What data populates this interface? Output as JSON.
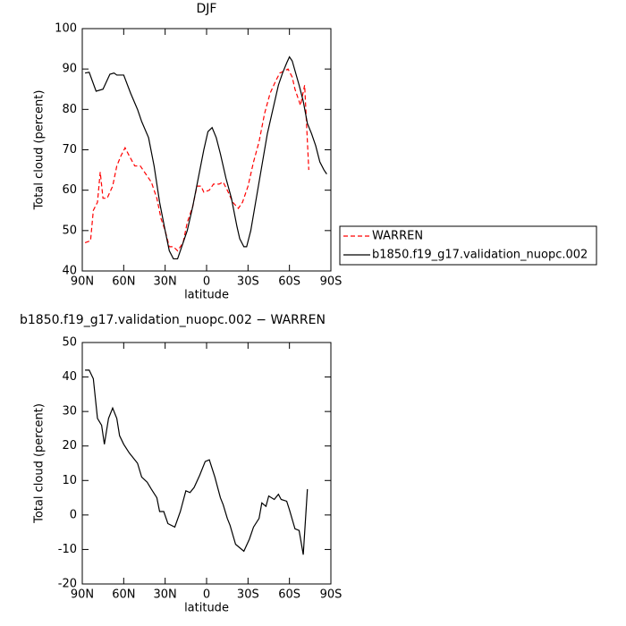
{
  "chart_data": [
    {
      "type": "line",
      "title": "DJF",
      "xlabel": "latitude",
      "ylabel": "Total cloud (percent)",
      "xlim": [
        90,
        -90
      ],
      "ylim": [
        40,
        100
      ],
      "xticks": [
        {
          "value": 90,
          "label": "90N"
        },
        {
          "value": 60,
          "label": "60N"
        },
        {
          "value": 30,
          "label": "30N"
        },
        0,
        {
          "value": -30,
          "label": "30S"
        },
        {
          "value": -60,
          "label": "60S"
        },
        {
          "value": -90,
          "label": "90S"
        }
      ],
      "yticks": [
        40,
        50,
        60,
        70,
        80,
        90,
        100
      ],
      "legend": "right",
      "series": [
        {
          "name": "WARREN",
          "color": "#ff0000",
          "dash": true,
          "x": [
            88,
            84,
            82,
            79,
            77,
            75,
            72,
            68,
            65,
            62,
            59,
            56,
            52,
            48,
            44,
            40,
            36,
            33,
            30,
            27,
            24,
            21,
            17,
            14,
            10,
            7,
            4,
            2,
            -2,
            -5,
            -9,
            -12,
            -15,
            -19,
            -23,
            -26,
            -30,
            -34,
            -38,
            -42,
            -46,
            -50,
            -53,
            -59,
            -62,
            -64,
            -68,
            -71,
            -74
          ],
          "values": [
            47,
            47.5,
            55,
            57,
            64.5,
            58,
            58,
            61,
            66,
            68.5,
            70.5,
            68.5,
            66,
            66,
            64,
            62,
            58,
            53,
            50,
            46,
            46,
            45,
            47,
            52,
            56,
            61,
            61,
            59.5,
            60,
            61.5,
            61.5,
            62,
            60,
            57,
            55.5,
            57,
            61,
            67,
            72,
            79,
            84,
            87,
            89,
            90,
            88,
            85,
            81,
            86,
            65
          ]
        },
        {
          "name": "b1850.f19_g17.validation_nuopc.002",
          "color": "#000000",
          "dash": false,
          "x": [
            88,
            85,
            80,
            75,
            70,
            67,
            65,
            60,
            55,
            50,
            47,
            42,
            38,
            34,
            30,
            27,
            24,
            21,
            18,
            14,
            10,
            6,
            2,
            -1,
            -4,
            -7,
            -10,
            -14,
            -18,
            -22,
            -24,
            -27,
            -29,
            -32,
            -36,
            -40,
            -44,
            -48,
            -52,
            -55,
            -58,
            -60,
            -62,
            -67,
            -70,
            -73,
            -76,
            -79,
            -82,
            -85,
            -87
          ],
          "values": [
            89,
            89.2,
            84.5,
            85,
            88.7,
            89,
            88.5,
            88.5,
            84,
            80,
            77,
            73,
            66,
            57,
            50,
            45,
            43,
            43,
            46,
            50,
            56,
            63,
            70,
            74.5,
            75.5,
            73,
            69,
            63,
            58,
            51,
            48,
            46,
            46,
            50,
            58,
            66,
            74,
            80,
            86,
            89,
            91.5,
            93,
            92,
            86,
            82,
            76.5,
            74,
            71,
            67,
            65,
            64
          ]
        }
      ]
    },
    {
      "type": "line",
      "title": "b1850.f19_g17.validation_nuopc.002 − WARREN",
      "xlabel": "latitude",
      "ylabel": "Total cloud (percent)",
      "xlim": [
        90,
        -90
      ],
      "ylim": [
        -20,
        50
      ],
      "xticks": [
        {
          "value": 90,
          "label": "90N"
        },
        {
          "value": 60,
          "label": "60N"
        },
        {
          "value": 30,
          "label": "30N"
        },
        0,
        {
          "value": -30,
          "label": "30S"
        },
        {
          "value": -60,
          "label": "60S"
        },
        {
          "value": -90,
          "label": "90S"
        }
      ],
      "yticks": [
        -20,
        -10,
        0,
        10,
        20,
        30,
        40,
        50
      ],
      "series": [
        {
          "color": "#000000",
          "dash": false,
          "x": [
            88,
            85,
            82,
            79,
            76,
            74,
            71,
            68,
            65,
            63,
            60,
            56,
            54,
            50,
            47,
            43,
            40,
            36,
            34,
            31,
            28,
            23,
            19,
            15,
            12,
            9,
            5,
            1,
            -2,
            -6,
            -10,
            -12,
            -15,
            -17,
            -21,
            -27,
            -31,
            -34,
            -38,
            -40,
            -43,
            -45,
            -49,
            -52,
            -54,
            -58,
            -60,
            -64,
            -67,
            -70,
            -73
          ],
          "values": [
            42,
            42,
            39.5,
            28,
            26,
            20.5,
            28,
            31,
            28,
            23,
            20.5,
            18,
            17,
            15,
            11,
            9.5,
            7.5,
            5,
            1,
            1,
            -2.5,
            -3.5,
            1,
            7,
            6.5,
            8,
            11.5,
            15.5,
            16,
            11,
            5,
            3,
            -1,
            -3,
            -8.5,
            -10.5,
            -7,
            -3.5,
            -1,
            3.5,
            2.5,
            5.5,
            4.5,
            6,
            4.5,
            4,
            1.5,
            -4,
            -4.5,
            -11.5,
            7.5
          ]
        }
      ]
    }
  ]
}
